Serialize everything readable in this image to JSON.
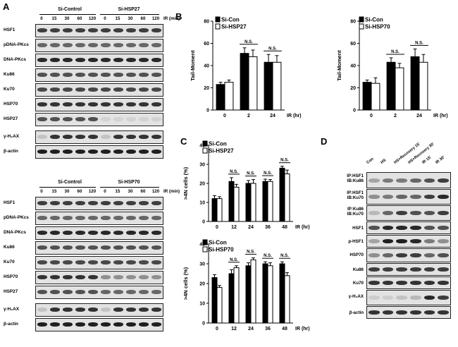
{
  "panel_A": {
    "letter": "A",
    "top": {
      "groups": [
        "Si-Control",
        "Si-HSP27"
      ],
      "timepoints": [
        "0",
        "15",
        "30",
        "60",
        "120",
        "0",
        "15",
        "30",
        "60",
        "120"
      ],
      "unit": "IR (min)",
      "rows": [
        "HSF1",
        "pDNA-PKcs",
        "DNA-PKcs",
        "Ku86",
        "Ku70",
        "HSP70",
        "HSP27",
        "γ-H₂AX",
        "β-actin"
      ]
    },
    "bottom": {
      "groups": [
        "Si-Control",
        "Si-HSP70"
      ],
      "timepoints": [
        "0",
        "15",
        "30",
        "60",
        "120",
        "0",
        "15",
        "30",
        "60",
        "120"
      ],
      "unit": "IR (min)",
      "rows": [
        "HSF1",
        "pDNA-PKcs",
        "DNA-PKcs",
        "Ku86",
        "Ku70",
        "HSP70",
        "HSP27",
        "γ-H₂AX",
        "β-actin"
      ]
    }
  },
  "panel_B": {
    "letter": "B"
  },
  "panel_C": {
    "letter": "C"
  },
  "panel_D": {
    "letter": "D",
    "lanes": [
      "Con",
      "HS",
      "HS+Recovery 15'",
      "HS+Recovery 30'",
      "IR 15'",
      "IR 30'"
    ],
    "rows": [
      [
        "IP:HSF1",
        "IB:Ku86"
      ],
      [
        "IP:HSF1",
        "IB:Ku70"
      ],
      [
        "IP:Ku86",
        "IB:Ku70"
      ],
      [
        "HSF1"
      ],
      [
        "p-HSF1"
      ],
      [
        "HSP70"
      ],
      [
        "Ku86"
      ],
      [
        "Ku70"
      ],
      [
        "γ-H₂AX"
      ],
      [
        "β-actin"
      ]
    ]
  },
  "chart_data": [
    {
      "type": "bar",
      "panel": "B",
      "ylabel": "Tail-Moment",
      "xlabel": "IR (hr)",
      "categories": [
        "0",
        "2",
        "24"
      ],
      "ylim": [
        0,
        80
      ],
      "yticks": [
        0,
        20,
        40,
        60,
        80
      ],
      "series": [
        {
          "name": "Si-Con",
          "color": "#000000",
          "values": [
            23,
            51,
            43
          ],
          "errors": [
            2,
            5,
            7
          ]
        },
        {
          "name": "Si-HSP27",
          "color": "#ffffff",
          "values": [
            25,
            48,
            43
          ],
          "errors": [
            2,
            6,
            6
          ]
        }
      ],
      "annotations": [
        {
          "between": "2",
          "text": "N.S."
        },
        {
          "between": "24",
          "text": "N.S."
        }
      ]
    },
    {
      "type": "bar",
      "panel": "B",
      "ylabel": "Tail-Moment",
      "xlabel": "IR (hr)",
      "categories": [
        "0",
        "2",
        "24"
      ],
      "ylim": [
        0,
        80
      ],
      "yticks": [
        0,
        20,
        40,
        60,
        80
      ],
      "series": [
        {
          "name": "Si-Con",
          "color": "#000000",
          "values": [
            25,
            43,
            48
          ],
          "errors": [
            2,
            4,
            7
          ]
        },
        {
          "name": "Si-HSP70",
          "color": "#ffffff",
          "values": [
            24,
            38,
            43
          ],
          "errors": [
            5,
            4,
            7
          ]
        }
      ],
      "annotations": [
        {
          "between": "2",
          "text": "N.S."
        },
        {
          "between": "24",
          "text": "N.S."
        }
      ]
    },
    {
      "type": "bar",
      "panel": "C",
      "ylabel": ">4N cells (%)",
      "xlabel": "IR (hr)",
      "categories": [
        "0",
        "12",
        "24",
        "36",
        "48"
      ],
      "ylim": [
        0,
        40
      ],
      "yticks": [
        0,
        10,
        20,
        30,
        40
      ],
      "series": [
        {
          "name": "Si-Con",
          "color": "#000000",
          "values": [
            12,
            21,
            20,
            21,
            28
          ],
          "errors": [
            1.5,
            2,
            1.5,
            1.2,
            1
          ]
        },
        {
          "name": "Si-HSP27",
          "color": "#ffffff",
          "values": [
            12,
            18,
            20,
            21,
            25
          ],
          "errors": [
            1,
            1.5,
            2,
            1,
            2
          ]
        }
      ],
      "annotations": [
        {
          "between": "12",
          "text": "N.S."
        },
        {
          "between": "24",
          "text": "N.S."
        },
        {
          "between": "36",
          "text": "N.S."
        },
        {
          "between": "48",
          "text": "N.S."
        }
      ]
    },
    {
      "type": "bar",
      "panel": "C",
      "ylabel": ">4N cells (%)",
      "xlabel": "IR (hr)",
      "categories": [
        "0",
        "12",
        "24",
        "36",
        "48"
      ],
      "ylim": [
        0,
        40
      ],
      "yticks": [
        0,
        10,
        20,
        30,
        40
      ],
      "series": [
        {
          "name": "Si-Con",
          "color": "#000000",
          "values": [
            23,
            25,
            29,
            30,
            30
          ],
          "errors": [
            1.5,
            2,
            1.5,
            1,
            1
          ]
        },
        {
          "name": "Si-HSP70",
          "color": "#ffffff",
          "values": [
            18,
            28,
            32,
            29,
            24
          ],
          "errors": [
            1,
            1,
            1,
            1.5,
            1.5
          ]
        }
      ],
      "annotations": [
        {
          "between": "12",
          "text": "N.S."
        },
        {
          "between": "24",
          "text": "N.S."
        },
        {
          "between": "36",
          "text": "N.S."
        },
        {
          "between": "48",
          "text": "N.S."
        }
      ]
    }
  ]
}
